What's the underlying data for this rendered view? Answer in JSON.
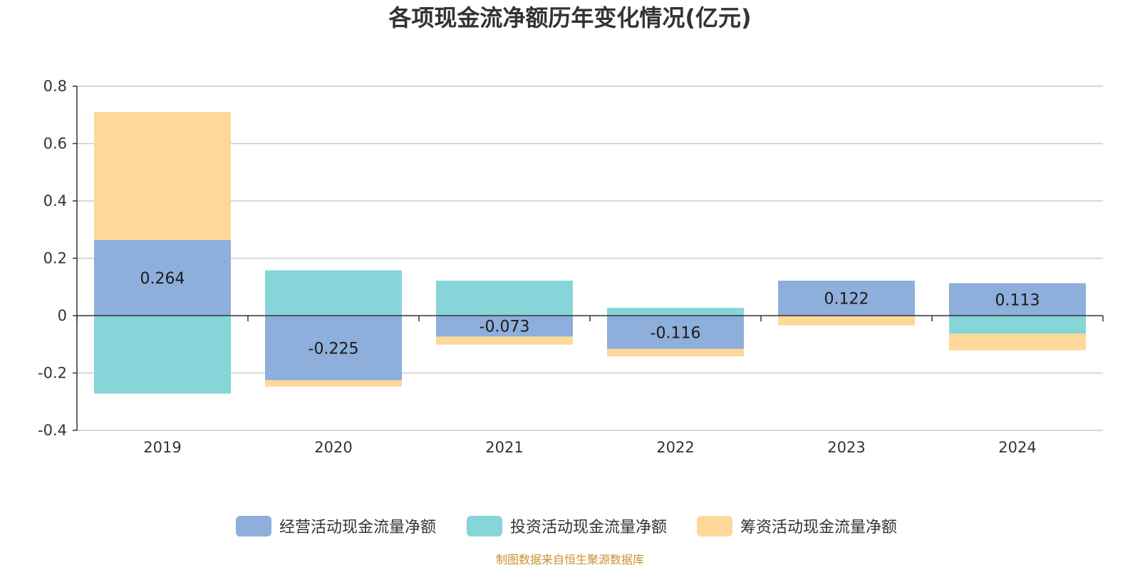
{
  "chart_data": {
    "type": "bar",
    "stacked": true,
    "title": "各项现金流净额历年变化情况(亿元)",
    "xlabel": "",
    "ylabel": "",
    "categories": [
      "2019",
      "2020",
      "2021",
      "2022",
      "2023",
      "2024"
    ],
    "ylim": [
      -0.4,
      0.8
    ],
    "yticks": [
      0.8,
      0.6,
      0.4,
      0.2,
      0,
      -0.2,
      -0.4
    ],
    "ytick_labels": [
      "0.8",
      "0.6",
      "0.4",
      "0.2",
      "0",
      "-0.2",
      "-0.4"
    ],
    "grid": true,
    "legend_position": "bottom",
    "series": [
      {
        "name": "经营活动现金流量净额",
        "color": "#8eaedb",
        "values": [
          0.264,
          -0.225,
          -0.073,
          -0.116,
          0.122,
          0.113
        ],
        "labels": [
          "0.264",
          "-0.225",
          "-0.073",
          "-0.116",
          "0.122",
          "0.113"
        ]
      },
      {
        "name": "投资活动现金流量净额",
        "color": "#86d5d8",
        "values": [
          -0.272,
          0.158,
          0.122,
          0.027,
          -0.001,
          -0.063
        ]
      },
      {
        "name": "筹资活动现金流量净额",
        "color": "#fdd89a",
        "values": [
          0.446,
          -0.023,
          -0.028,
          -0.026,
          -0.033,
          -0.058
        ]
      }
    ],
    "source": "制图数据来自恒生聚源数据库"
  }
}
